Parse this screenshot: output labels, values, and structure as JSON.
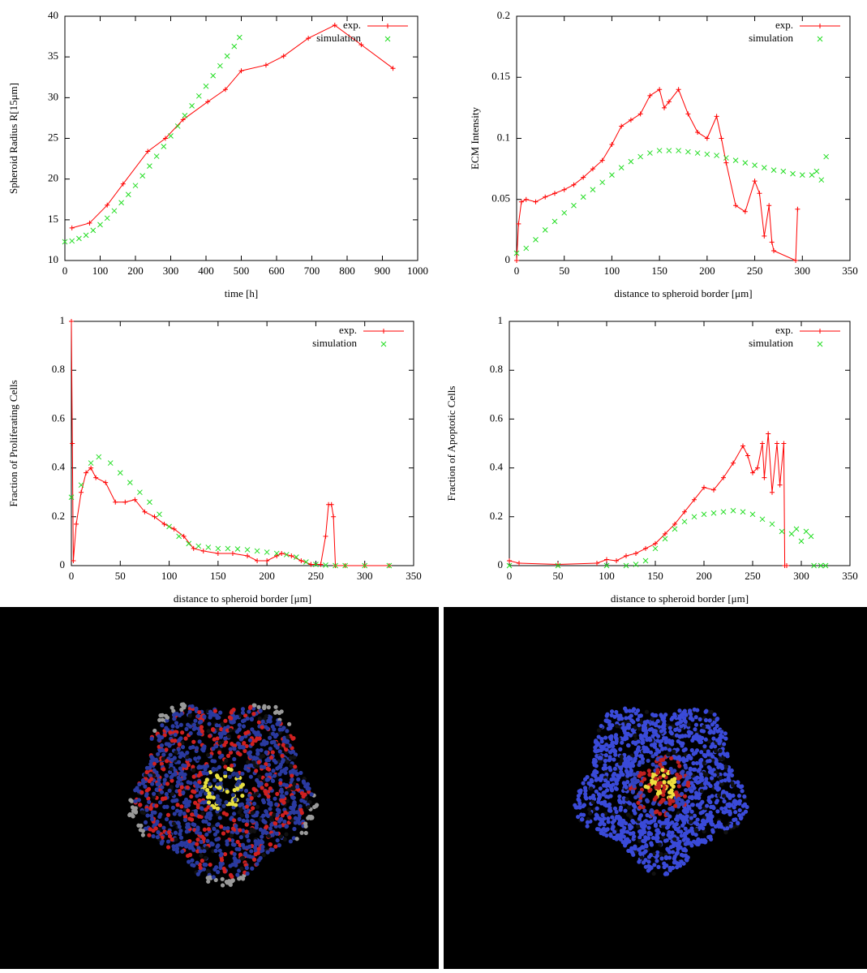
{
  "chart_data": [
    {
      "type": "line",
      "xlabel": "time [h]",
      "ylabel": "Spheroid Radius R[15μm]",
      "xlim": [
        0,
        1000
      ],
      "ylim": [
        10,
        40
      ],
      "xticks": [
        0,
        100,
        200,
        300,
        400,
        500,
        600,
        700,
        800,
        900,
        1000
      ],
      "yticks": [
        10,
        15,
        20,
        25,
        30,
        35,
        40
      ],
      "legend": "upper right",
      "series": [
        {
          "name": "exp.",
          "color": "#ff0000",
          "marker": "+",
          "line": true,
          "x": [
            20,
            70,
            120,
            165,
            235,
            285,
            335,
            405,
            455,
            500,
            570,
            620,
            690,
            765,
            840,
            930
          ],
          "values": [
            14,
            14.6,
            16.8,
            19.4,
            23.4,
            25,
            27.3,
            29.5,
            31,
            33.3,
            34,
            35.1,
            37.3,
            38.9,
            36.5,
            33.6
          ]
        },
        {
          "name": "simulation",
          "color": "#22dd22",
          "marker": "x",
          "line": false,
          "x": [
            0,
            20,
            40,
            60,
            80,
            100,
            120,
            140,
            160,
            180,
            200,
            220,
            240,
            260,
            280,
            300,
            320,
            340,
            360,
            380,
            400,
            420,
            440,
            460,
            480,
            495
          ],
          "values": [
            12.3,
            12.4,
            12.7,
            13.1,
            13.7,
            14.4,
            15.2,
            16.1,
            17.1,
            18.1,
            19.2,
            20.4,
            21.6,
            22.8,
            24,
            25.3,
            26.5,
            27.8,
            29,
            30.2,
            31.4,
            32.7,
            33.9,
            35.1,
            36.3,
            37.4
          ]
        }
      ]
    },
    {
      "type": "line",
      "xlabel": "distance to spheroid border [μm]",
      "ylabel": "ECM Intensity",
      "xlim": [
        0,
        350
      ],
      "ylim": [
        0,
        0.2
      ],
      "xticks": [
        0,
        50,
        100,
        150,
        200,
        250,
        300,
        350
      ],
      "yticks": [
        0,
        0.05,
        0.1,
        0.15,
        0.2
      ],
      "legend": "upper right",
      "series": [
        {
          "name": "exp.",
          "color": "#ff0000",
          "marker": "+",
          "line": true,
          "x": [
            0,
            2,
            5,
            10,
            20,
            30,
            40,
            50,
            60,
            70,
            80,
            90,
            100,
            110,
            120,
            130,
            140,
            150,
            155,
            160,
            170,
            180,
            190,
            200,
            210,
            215,
            220,
            230,
            240,
            250,
            255,
            260,
            265,
            268,
            270,
            293,
            295
          ],
          "values": [
            0,
            0.03,
            0.048,
            0.05,
            0.048,
            0.052,
            0.055,
            0.058,
            0.062,
            0.068,
            0.075,
            0.082,
            0.095,
            0.11,
            0.115,
            0.12,
            0.135,
            0.14,
            0.125,
            0.13,
            0.14,
            0.12,
            0.105,
            0.1,
            0.118,
            0.1,
            0.08,
            0.045,
            0.04,
            0.065,
            0.055,
            0.02,
            0.045,
            0.015,
            0.008,
            0,
            0.042
          ]
        },
        {
          "name": "simulation",
          "color": "#22dd22",
          "marker": "x",
          "line": false,
          "x": [
            0,
            10,
            20,
            30,
            40,
            50,
            60,
            70,
            80,
            90,
            100,
            110,
            120,
            130,
            140,
            150,
            160,
            170,
            180,
            190,
            200,
            210,
            220,
            230,
            240,
            250,
            260,
            270,
            280,
            290,
            300,
            310,
            315,
            320,
            325
          ],
          "values": [
            0.006,
            0.01,
            0.017,
            0.025,
            0.032,
            0.039,
            0.045,
            0.052,
            0.058,
            0.064,
            0.07,
            0.076,
            0.081,
            0.085,
            0.088,
            0.09,
            0.09,
            0.09,
            0.089,
            0.088,
            0.087,
            0.086,
            0.084,
            0.082,
            0.08,
            0.078,
            0.076,
            0.074,
            0.073,
            0.071,
            0.07,
            0.07,
            0.073,
            0.066,
            0.085
          ]
        }
      ]
    },
    {
      "type": "line",
      "xlabel": "distance to spheroid border [μm]",
      "ylabel": "Fraction of Proliferating Cells",
      "xlim": [
        0,
        350
      ],
      "ylim": [
        0,
        1
      ],
      "xticks": [
        0,
        50,
        100,
        150,
        200,
        250,
        300,
        350
      ],
      "yticks": [
        0,
        0.2,
        0.4,
        0.6,
        0.8,
        1
      ],
      "legend": "upper right",
      "series": [
        {
          "name": "exp.",
          "color": "#ff0000",
          "marker": "+",
          "line": true,
          "x": [
            0,
            1,
            2,
            5,
            10,
            15,
            20,
            25,
            35,
            45,
            55,
            65,
            75,
            85,
            95,
            105,
            115,
            125,
            135,
            150,
            165,
            180,
            190,
            200,
            210,
            215,
            225,
            235,
            245,
            255,
            260,
            263,
            266,
            268,
            270,
            280,
            300,
            325
          ],
          "values": [
            1,
            0.5,
            0.02,
            0.17,
            0.3,
            0.38,
            0.4,
            0.36,
            0.34,
            0.26,
            0.26,
            0.27,
            0.22,
            0.2,
            0.17,
            0.15,
            0.12,
            0.07,
            0.06,
            0.05,
            0.05,
            0.04,
            0.02,
            0.02,
            0.04,
            0.05,
            0.04,
            0.02,
            0.005,
            0.005,
            0.12,
            0.25,
            0.25,
            0.2,
            0,
            0,
            0,
            0
          ]
        },
        {
          "name": "simulation",
          "color": "#22dd22",
          "marker": "x",
          "line": false,
          "x": [
            0,
            10,
            20,
            28,
            40,
            50,
            60,
            70,
            80,
            90,
            100,
            110,
            120,
            130,
            140,
            150,
            160,
            170,
            180,
            190,
            200,
            210,
            220,
            230,
            240,
            250,
            260,
            270,
            280,
            300,
            325
          ],
          "values": [
            0.28,
            0.33,
            0.42,
            0.445,
            0.42,
            0.38,
            0.34,
            0.3,
            0.26,
            0.21,
            0.16,
            0.12,
            0.09,
            0.08,
            0.075,
            0.07,
            0.07,
            0.068,
            0.065,
            0.06,
            0.055,
            0.05,
            0.045,
            0.035,
            0.015,
            0.005,
            0.002,
            0,
            0,
            0,
            0
          ]
        }
      ]
    },
    {
      "type": "line",
      "xlabel": "distance to spheroid border [μm]",
      "ylabel": "Fraction of Apoptotic Cells",
      "xlim": [
        0,
        350
      ],
      "ylim": [
        0,
        1
      ],
      "xticks": [
        0,
        50,
        100,
        150,
        200,
        250,
        300,
        350
      ],
      "yticks": [
        0,
        0.2,
        0.4,
        0.6,
        0.8,
        1
      ],
      "legend": "upper right",
      "series": [
        {
          "name": "exp.",
          "color": "#ff0000",
          "marker": "+",
          "line": true,
          "x": [
            0,
            10,
            50,
            90,
            100,
            110,
            120,
            130,
            140,
            150,
            160,
            170,
            180,
            190,
            200,
            210,
            220,
            230,
            240,
            245,
            250,
            255,
            260,
            262,
            266,
            270,
            275,
            278,
            282,
            283,
            285
          ],
          "values": [
            0.02,
            0.01,
            0.005,
            0.01,
            0.025,
            0.02,
            0.04,
            0.05,
            0.07,
            0.09,
            0.13,
            0.17,
            0.22,
            0.27,
            0.32,
            0.31,
            0.36,
            0.42,
            0.49,
            0.45,
            0.38,
            0.4,
            0.5,
            0.36,
            0.54,
            0.3,
            0.5,
            0.33,
            0.5,
            0,
            0
          ]
        },
        {
          "name": "simulation",
          "color": "#22dd22",
          "marker": "x",
          "line": false,
          "x": [
            0,
            50,
            100,
            120,
            130,
            140,
            150,
            160,
            170,
            180,
            190,
            200,
            210,
            220,
            230,
            240,
            250,
            260,
            270,
            280,
            290,
            295,
            300,
            305,
            310,
            313,
            320,
            325
          ],
          "values": [
            0,
            0,
            0,
            0,
            0.005,
            0.02,
            0.07,
            0.11,
            0.15,
            0.18,
            0.2,
            0.21,
            0.215,
            0.22,
            0.225,
            0.22,
            0.21,
            0.19,
            0.17,
            0.14,
            0.13,
            0.15,
            0.1,
            0.14,
            0.12,
            0,
            0,
            0
          ]
        }
      ]
    }
  ]
}
